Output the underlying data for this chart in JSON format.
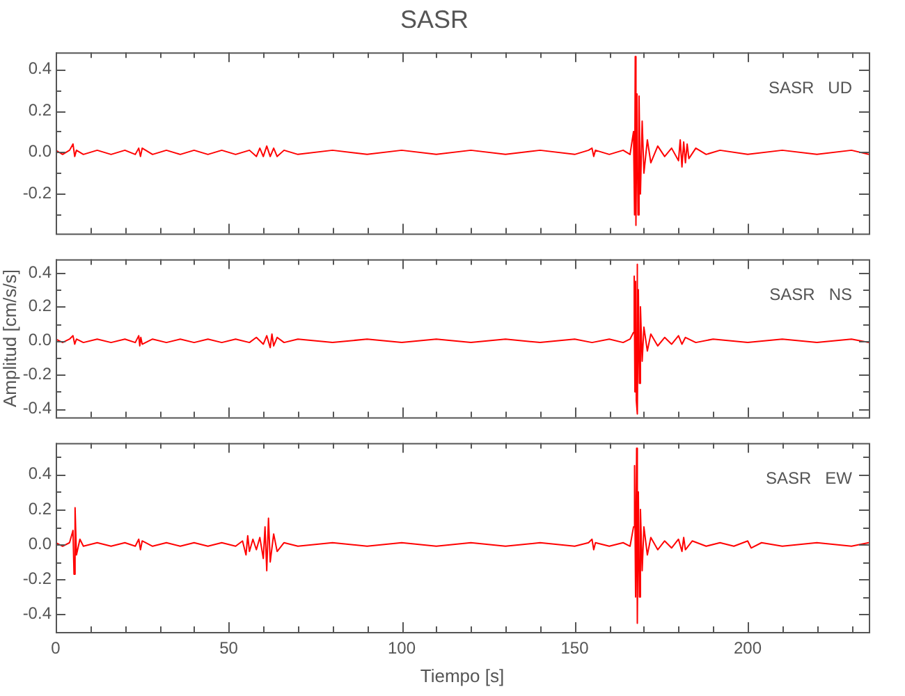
{
  "chart_data": [
    {
      "type": "line",
      "title": "SASR",
      "annotations": [
        "SASR   UD"
      ],
      "xlim": [
        0,
        235
      ],
      "ylim": [
        -0.39,
        0.48
      ],
      "tick_labels": "y",
      "xticks": [
        0,
        {
          "value": 10,
          "label": null
        },
        {
          "value": 20,
          "label": null
        },
        {
          "value": 30,
          "label": null
        },
        {
          "value": 40,
          "label": null
        },
        50,
        {
          "value": 60,
          "label": null
        },
        {
          "value": 70,
          "label": null
        },
        {
          "value": 80,
          "label": null
        },
        {
          "value": 90,
          "label": null
        },
        100,
        {
          "value": 110,
          "label": null
        },
        {
          "value": 120,
          "label": null
        },
        {
          "value": 130,
          "label": null
        },
        {
          "value": 140,
          "label": null
        },
        150,
        {
          "value": 160,
          "label": null
        },
        {
          "value": 170,
          "label": null
        },
        {
          "value": 180,
          "label": null
        },
        {
          "value": 190,
          "label": null
        },
        200,
        {
          "value": 210,
          "label": null
        },
        {
          "value": 220,
          "label": null
        },
        {
          "value": 230,
          "label": null
        }
      ],
      "yticks": [
        {
          "value": -0.3,
          "label": null
        },
        {
          "value": -0.2,
          "label": "-0.2"
        },
        {
          "value": -0.1,
          "label": null
        },
        {
          "value": 0,
          "label": "0.0"
        },
        {
          "value": 0.1,
          "label": null
        },
        {
          "value": 0.2,
          "label": "0.2"
        },
        {
          "value": 0.3,
          "label": null
        },
        {
          "value": 0.4,
          "label": "0.4"
        }
      ],
      "series": [
        {
          "color": "#ff0000",
          "x": [
            0,
            2,
            4,
            5,
            5.5,
            6,
            8,
            12,
            16,
            20,
            23,
            24,
            24.5,
            25,
            28,
            32,
            36,
            40,
            44,
            48,
            52,
            56,
            58,
            59,
            60,
            61,
            62,
            63,
            64,
            66,
            70,
            80,
            90,
            100,
            110,
            120,
            130,
            140,
            150,
            154,
            155,
            155.5,
            156,
            160,
            164,
            166,
            167,
            167.3,
            167.5,
            167.7,
            168,
            168.3,
            168.6,
            169,
            169.5,
            170,
            171,
            172,
            174,
            176,
            178,
            180,
            180.5,
            181,
            181.5,
            182,
            182.5,
            183,
            185,
            188,
            192,
            200,
            210,
            220,
            230,
            235
          ],
          "values": [
            0.01,
            -0.01,
            0.01,
            0.04,
            -0.02,
            0.01,
            -0.01,
            0.01,
            -0.01,
            0.01,
            -0.01,
            0.02,
            -0.02,
            0.02,
            -0.01,
            0.01,
            -0.01,
            0.01,
            -0.01,
            0.01,
            -0.01,
            0.01,
            -0.02,
            0.02,
            -0.02,
            0.03,
            -0.02,
            0.02,
            -0.02,
            0.01,
            -0.01,
            0.01,
            -0.01,
            0.01,
            -0.01,
            0.01,
            -0.01,
            0.01,
            -0.01,
            0.01,
            0.02,
            -0.02,
            0.01,
            -0.01,
            0.01,
            -0.01,
            0.1,
            -0.3,
            0.46,
            -0.35,
            0.28,
            -0.3,
            0.27,
            -0.2,
            0.15,
            -0.1,
            0.06,
            -0.05,
            0.03,
            -0.02,
            0.02,
            -0.04,
            0.06,
            -0.07,
            0.05,
            -0.05,
            0.04,
            -0.03,
            0.02,
            -0.01,
            0.01,
            -0.01,
            0.01,
            -0.01,
            0.01,
            -0.01
          ]
        }
      ]
    },
    {
      "type": "line",
      "ylabel": "Amplitud [cm/s/s]",
      "annotations": [
        "SASR   NS"
      ],
      "xlim": [
        0,
        235
      ],
      "ylim": [
        -0.45,
        0.48
      ],
      "tick_labels": "y",
      "xticks": [
        0,
        {
          "value": 10,
          "label": null
        },
        {
          "value": 20,
          "label": null
        },
        {
          "value": 30,
          "label": null
        },
        {
          "value": 40,
          "label": null
        },
        50,
        {
          "value": 60,
          "label": null
        },
        {
          "value": 70,
          "label": null
        },
        {
          "value": 80,
          "label": null
        },
        {
          "value": 90,
          "label": null
        },
        100,
        {
          "value": 110,
          "label": null
        },
        {
          "value": 120,
          "label": null
        },
        {
          "value": 130,
          "label": null
        },
        {
          "value": 140,
          "label": null
        },
        150,
        {
          "value": 160,
          "label": null
        },
        {
          "value": 170,
          "label": null
        },
        {
          "value": 180,
          "label": null
        },
        {
          "value": 190,
          "label": null
        },
        200,
        {
          "value": 210,
          "label": null
        },
        {
          "value": 220,
          "label": null
        },
        {
          "value": 230,
          "label": null
        }
      ],
      "yticks": [
        {
          "value": -0.4,
          "label": "-0.4"
        },
        {
          "value": -0.3,
          "label": null
        },
        {
          "value": -0.2,
          "label": "-0.2"
        },
        {
          "value": -0.1,
          "label": null
        },
        {
          "value": 0,
          "label": "0.0"
        },
        {
          "value": 0.1,
          "label": null
        },
        {
          "value": 0.2,
          "label": "0.2"
        },
        {
          "value": 0.3,
          "label": null
        },
        {
          "value": 0.4,
          "label": "0.4"
        }
      ],
      "series": [
        {
          "color": "#ff0000",
          "x": [
            0,
            2,
            4,
            5,
            5.5,
            6,
            8,
            12,
            16,
            20,
            23,
            24,
            24.3,
            24.6,
            25,
            28,
            32,
            36,
            40,
            44,
            48,
            52,
            56,
            58,
            60,
            61,
            62,
            62.5,
            63,
            64,
            66,
            70,
            80,
            90,
            100,
            110,
            120,
            130,
            140,
            150,
            155,
            160,
            164,
            166,
            167,
            167.2,
            167.4,
            167.6,
            167.8,
            168,
            168.2,
            168.4,
            168.7,
            169,
            169.5,
            170,
            171,
            172,
            174,
            176,
            178,
            180,
            181,
            182,
            185,
            190,
            200,
            210,
            220,
            230,
            235
          ],
          "values": [
            0.01,
            -0.01,
            0.01,
            0.03,
            -0.02,
            0.01,
            -0.01,
            0.01,
            -0.01,
            0.01,
            -0.01,
            0.03,
            -0.03,
            0.02,
            -0.02,
            0.01,
            -0.01,
            0.01,
            -0.01,
            0.01,
            -0.01,
            0.01,
            -0.01,
            0.02,
            -0.02,
            0.03,
            -0.04,
            0.04,
            -0.03,
            0.02,
            -0.01,
            0.01,
            -0.01,
            0.01,
            -0.01,
            0.01,
            -0.01,
            0.01,
            -0.01,
            0.01,
            -0.01,
            0.01,
            -0.01,
            0.01,
            0.05,
            0.38,
            -0.3,
            0.35,
            -0.35,
            0.45,
            -0.43,
            0.3,
            -0.25,
            0.2,
            -0.12,
            0.08,
            -0.06,
            0.04,
            -0.03,
            0.02,
            -0.02,
            0.03,
            -0.02,
            0.02,
            -0.01,
            0.01,
            -0.01,
            0.01,
            -0.01,
            0.01,
            -0.01
          ]
        }
      ]
    },
    {
      "type": "line",
      "xlabel": "Tiempo [s]",
      "annotations": [
        "SASR   EW"
      ],
      "xlim": [
        0,
        235
      ],
      "ylim": [
        -0.5,
        0.58
      ],
      "xticks": [
        {
          "value": 0,
          "label": "0"
        },
        {
          "value": 10,
          "label": null
        },
        {
          "value": 20,
          "label": null
        },
        {
          "value": 30,
          "label": null
        },
        {
          "value": 40,
          "label": null
        },
        {
          "value": 50,
          "label": "50"
        },
        {
          "value": 60,
          "label": null
        },
        {
          "value": 70,
          "label": null
        },
        {
          "value": 80,
          "label": null
        },
        {
          "value": 90,
          "label": null
        },
        {
          "value": 100,
          "label": "100"
        },
        {
          "value": 110,
          "label": null
        },
        {
          "value": 120,
          "label": null
        },
        {
          "value": 130,
          "label": null
        },
        {
          "value": 140,
          "label": null
        },
        {
          "value": 150,
          "label": "150"
        },
        {
          "value": 160,
          "label": null
        },
        {
          "value": 170,
          "label": null
        },
        {
          "value": 180,
          "label": null
        },
        {
          "value": 190,
          "label": null
        },
        {
          "value": 200,
          "label": "200"
        },
        {
          "value": 210,
          "label": null
        },
        {
          "value": 220,
          "label": null
        },
        {
          "value": 230,
          "label": null
        }
      ],
      "yticks": [
        {
          "value": -0.4,
          "label": "-0.4"
        },
        {
          "value": -0.3,
          "label": null
        },
        {
          "value": -0.2,
          "label": "-0.2"
        },
        {
          "value": -0.1,
          "label": null
        },
        {
          "value": 0,
          "label": "0.0"
        },
        {
          "value": 0.1,
          "label": null
        },
        {
          "value": 0.2,
          "label": "0.2"
        },
        {
          "value": 0.3,
          "label": null
        },
        {
          "value": 0.4,
          "label": "0.4"
        },
        {
          "value": 0.5,
          "label": null
        }
      ],
      "series": [
        {
          "color": "#ff0000",
          "x": [
            0,
            2,
            4,
            5,
            5.3,
            5.6,
            6,
            7,
            8,
            12,
            16,
            20,
            23,
            24,
            24.5,
            25,
            28,
            32,
            36,
            40,
            44,
            48,
            52,
            54,
            55,
            55.5,
            56,
            57,
            58,
            59,
            60,
            60.5,
            61,
            61.5,
            62,
            63,
            64,
            66,
            70,
            80,
            90,
            100,
            110,
            120,
            130,
            140,
            150,
            154,
            155,
            155.5,
            156,
            160,
            164,
            166,
            167,
            167.3,
            167.6,
            167.9,
            168.1,
            168.4,
            168.7,
            169,
            169.5,
            170,
            171,
            172,
            174,
            176,
            178,
            180,
            181,
            181.5,
            182,
            184,
            188,
            192,
            196,
            200,
            201,
            204,
            210,
            220,
            230,
            235
          ],
          "values": [
            0.01,
            -0.01,
            0.01,
            0.08,
            -0.17,
            0.21,
            -0.06,
            0.03,
            -0.01,
            0.01,
            -0.01,
            0.01,
            -0.01,
            0.03,
            -0.03,
            0.02,
            -0.01,
            0.01,
            -0.01,
            0.01,
            -0.01,
            0.01,
            -0.01,
            0.02,
            -0.06,
            0.05,
            -0.04,
            0.03,
            -0.03,
            0.04,
            -0.08,
            0.1,
            -0.15,
            0.15,
            -0.1,
            0.06,
            -0.04,
            0.01,
            -0.01,
            0.01,
            -0.01,
            0.01,
            -0.01,
            0.01,
            -0.01,
            0.01,
            -0.01,
            0.01,
            0.03,
            -0.03,
            0.01,
            -0.01,
            0.01,
            -0.01,
            0.1,
            0.45,
            -0.3,
            0.55,
            -0.45,
            0.3,
            -0.3,
            0.2,
            -0.15,
            0.1,
            -0.06,
            0.04,
            -0.03,
            0.02,
            -0.02,
            0.03,
            -0.04,
            0.04,
            -0.03,
            0.02,
            -0.01,
            0.01,
            -0.01,
            0.02,
            -0.02,
            0.01,
            -0.01,
            0.01,
            -0.01,
            0.01
          ]
        }
      ]
    }
  ]
}
